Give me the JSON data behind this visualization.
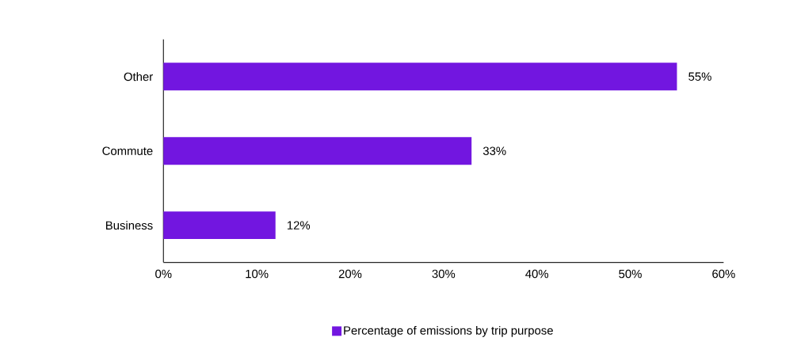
{
  "chart_data": {
    "type": "bar",
    "orientation": "horizontal",
    "categories": [
      "Other",
      "Commute",
      "Business"
    ],
    "series": [
      {
        "name": "Percentage of emissions by trip purpose",
        "color": "#7216e0",
        "values": [
          55,
          33,
          12
        ],
        "value_labels": [
          "55%",
          "33%",
          "12%"
        ]
      }
    ],
    "xlim": [
      0,
      60
    ],
    "xticks": [
      {
        "value": 0,
        "label": "0%"
      },
      {
        "value": 10,
        "label": "10%"
      },
      {
        "value": 20,
        "label": "20%"
      },
      {
        "value": 30,
        "label": "30%"
      },
      {
        "value": 40,
        "label": "40%"
      },
      {
        "value": 50,
        "label": "50%"
      },
      {
        "value": 60,
        "label": "60%"
      }
    ],
    "legend": "bottom"
  }
}
